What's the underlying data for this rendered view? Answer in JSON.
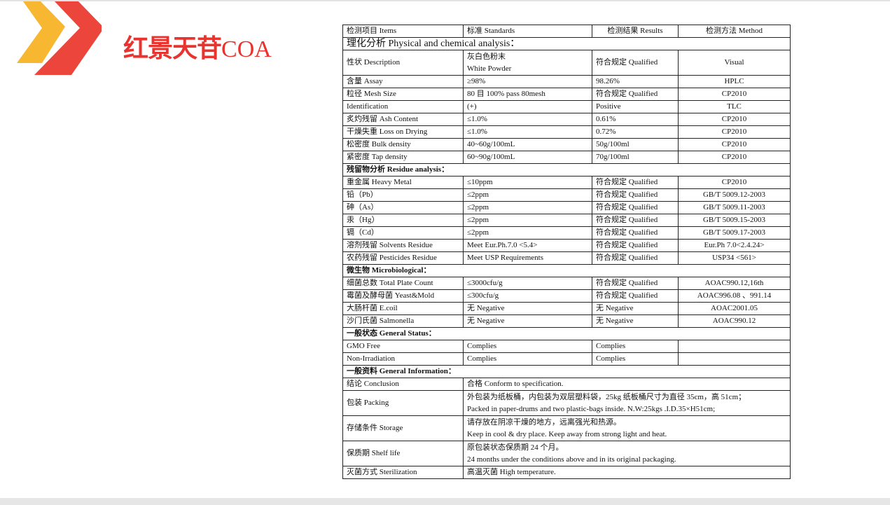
{
  "title": {
    "cn": "红景天苷",
    "suffix": "COA"
  },
  "colors": {
    "brand_red": "#e8332e",
    "brand_yellow": "#f7b731"
  },
  "table": {
    "headers": [
      "检测项目 Items",
      "标准 Standards",
      "检测结果 Results",
      "检测方法 Method"
    ],
    "rows": [
      {
        "type": "section",
        "label": "理化分析 Physical and chemical analysis：",
        "big": true
      },
      {
        "type": "row",
        "tall": true,
        "cells": [
          "性状 Description",
          [
            "灰白色粉末",
            "White Powder"
          ],
          "符合规定 Qualified",
          "Visual"
        ]
      },
      {
        "type": "row",
        "cells": [
          "含量 Assay",
          "≥98%",
          "98.26%",
          "HPLC"
        ]
      },
      {
        "type": "row",
        "cells": [
          "粒径 Mesh Size",
          "80 目 100% pass 80mesh",
          "符合规定 Qualified",
          "CP2010"
        ]
      },
      {
        "type": "row",
        "cells": [
          "Identification",
          "(+)",
          "Positive",
          "TLC"
        ]
      },
      {
        "type": "row",
        "cells": [
          "炙灼残留 Ash Content",
          "≤1.0%",
          "0.61%",
          "CP2010"
        ]
      },
      {
        "type": "row",
        "cells": [
          "干燥失重 Loss on Drying",
          "≤1.0%",
          "0.72%",
          "CP2010"
        ]
      },
      {
        "type": "row",
        "cells": [
          "松密度 Bulk density",
          "40~60g/100mL",
          "50g/100ml",
          "CP2010"
        ]
      },
      {
        "type": "row",
        "cells": [
          "紧密度 Tap density",
          "60~90g/100mL",
          "70g/100ml",
          "CP2010"
        ]
      },
      {
        "type": "section",
        "label": "残留物分析 Residue analysis："
      },
      {
        "type": "row",
        "cells": [
          "重金属 Heavy Metal",
          "≤10ppm",
          "符合规定 Qualified",
          "CP2010"
        ]
      },
      {
        "type": "row",
        "cells": [
          "铅（Pb）",
          "≤2ppm",
          "符合规定 Qualified",
          "GB/T 5009.12-2003"
        ]
      },
      {
        "type": "row",
        "cells": [
          "砷（As）",
          "≤2ppm",
          "符合规定 Qualified",
          "GB/T 5009.11-2003"
        ]
      },
      {
        "type": "row",
        "cells": [
          "汞（Hg）",
          "≤2ppm",
          "符合规定 Qualified",
          "GB/T 5009.15-2003"
        ]
      },
      {
        "type": "row",
        "cells": [
          "镉（Cd）",
          "≤2ppm",
          "符合规定 Qualified",
          "GB/T 5009.17-2003"
        ]
      },
      {
        "type": "row",
        "cells": [
          "溶剂残留 Solvents Residue",
          "Meet Eur.Ph.7.0 <5.4>",
          "符合规定 Qualified",
          "Eur.Ph 7.0<2.4.24>"
        ]
      },
      {
        "type": "row",
        "cells": [
          "农药残留 Pesticides Residue",
          "Meet USP Requirements",
          "符合规定 Qualified",
          "USP34 <561>"
        ]
      },
      {
        "type": "section",
        "label": "微生物 Microbiological："
      },
      {
        "type": "row",
        "cells": [
          "细菌总数 Total Plate Count",
          "≤3000cfu/g",
          "符合规定 Qualified",
          "AOAC990.12,16th"
        ]
      },
      {
        "type": "row",
        "cells": [
          "霉菌及酵母菌 Yeast&Mold",
          "≤300cfu/g",
          "符合规定 Qualified",
          "AOAC996.08 、991.14"
        ]
      },
      {
        "type": "row",
        "cells": [
          "大肠杆菌 E.coil",
          "无 Negative",
          "无 Negative",
          "AOAC2001.05"
        ]
      },
      {
        "type": "row",
        "cells": [
          "沙门氏菌 Salmonella",
          "无 Negative",
          "无 Negative",
          "AOAC990.12"
        ]
      },
      {
        "type": "section",
        "label": "一般状态 General Status："
      },
      {
        "type": "row",
        "cells": [
          "GMO Free",
          "Complies",
          "Complies",
          ""
        ]
      },
      {
        "type": "row",
        "cells": [
          "Non-Irradiation",
          "Complies",
          "Complies",
          ""
        ]
      },
      {
        "type": "section",
        "label": "一般资料 General Information："
      },
      {
        "type": "info",
        "item": "结论 Conclusion",
        "lines": [
          "合格 Conform to specification."
        ]
      },
      {
        "type": "info",
        "tall": true,
        "item": "包装 Packing",
        "lines": [
          "外包装为纸板桶，内包装为双层塑料袋，25kg 纸板桶尺寸为直径 35cm，高 51cm；",
          "Packed in paper-drums and two plastic-bags inside. N.W:25kgs .I.D.35×H51cm;"
        ]
      },
      {
        "type": "info",
        "tall": true,
        "item": "存储条件 Storage",
        "lines": [
          "请存放在阴凉干燥的地方，远离强光和热源。",
          "Keep in cool & dry place. Keep away from strong light and heat."
        ]
      },
      {
        "type": "info",
        "tall": true,
        "item": "保质期 Shelf life",
        "lines": [
          "原包装状态保质期 24 个月。",
          "24 months under the conditions above and in its original packaging."
        ]
      },
      {
        "type": "info",
        "item": "灭菌方式 Sterilization",
        "lines": [
          "高温灭菌 High temperature."
        ]
      }
    ]
  }
}
